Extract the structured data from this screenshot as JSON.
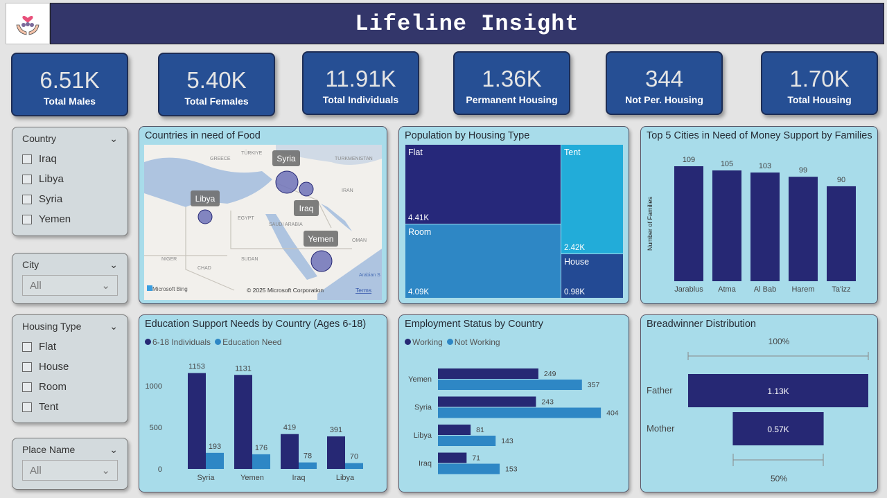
{
  "header": {
    "title": "Lifeline Insight",
    "logo_icon": "hands-holding-family-heart-icon"
  },
  "kpis": [
    {
      "value": "6.51K",
      "label": "Total Males"
    },
    {
      "value": "5.40K",
      "label": "Total Females"
    },
    {
      "value": "11.91K",
      "label": "Total Individuals"
    },
    {
      "value": "1.36K",
      "label": "Permanent Housing"
    },
    {
      "value": "344",
      "label": "Not Per. Housing"
    },
    {
      "value": "1.70K",
      "label": "Total Housing"
    }
  ],
  "slicers": {
    "country": {
      "title": "Country",
      "options": [
        "Iraq",
        "Libya",
        "Syria",
        "Yemen"
      ]
    },
    "city": {
      "title": "City",
      "value": "All"
    },
    "housing": {
      "title": "Housing Type",
      "options": [
        "Flat",
        "House",
        "Room",
        "Tent"
      ]
    },
    "place": {
      "title": "Place Name",
      "value": "All"
    }
  },
  "map": {
    "title": "Countries in need of Food",
    "labels": [
      "Syria",
      "Libya",
      "Iraq",
      "Yemen"
    ],
    "region_labels": [
      "GREECE",
      "TÜRKIYE",
      "TURKMENISTAN",
      "IRAN",
      "EGYPT",
      "SAUDI ARABIA",
      "OMAN",
      "NIGER",
      "CHAD",
      "SUDAN",
      "Arabian S"
    ],
    "attribution": "© 2025 Microsoft Corporation",
    "terms": "Terms",
    "brand": "Microsoft Bing"
  },
  "colors": {
    "dark": "#262874",
    "mid": "#2e87c5",
    "light": "#22acd9",
    "navy": "#234a94",
    "panel": "#a8dcea",
    "kpi": "#264f94"
  },
  "chart_data": [
    {
      "type": "treemap",
      "title": "Population by Housing Type",
      "categories": [
        "Flat",
        "Room",
        "Tent",
        "House"
      ],
      "values": [
        4410,
        4090,
        2420,
        980
      ],
      "labels": [
        "4.41K",
        "4.09K",
        "2.42K",
        "0.98K"
      ]
    },
    {
      "type": "bar",
      "title": "Top 5 Cities in Need of Money Support by Families",
      "ylabel": "Number of Families",
      "categories": [
        "Jarablus",
        "Atma",
        "Al Bab",
        "Harem",
        "Ta'izz"
      ],
      "values": [
        109,
        105,
        103,
        99,
        90
      ]
    },
    {
      "type": "bar",
      "title": "Education Support Needs by Country (Ages 6-18)",
      "categories": [
        "Syria",
        "Yemen",
        "Iraq",
        "Libya"
      ],
      "series": [
        {
          "name": "6-18 Individuals",
          "values": [
            1153,
            1131,
            419,
            391
          ]
        },
        {
          "name": "Education Need",
          "values": [
            193,
            176,
            78,
            70
          ]
        }
      ],
      "yticks": [
        0,
        500,
        1000
      ]
    },
    {
      "type": "bar",
      "orientation": "horizontal",
      "title": "Employment Status by Country",
      "categories": [
        "Yemen",
        "Syria",
        "Libya",
        "Iraq"
      ],
      "series": [
        {
          "name": "Working",
          "values": [
            249,
            243,
            81,
            71
          ]
        },
        {
          "name": "Not Working",
          "values": [
            357,
            404,
            143,
            153
          ]
        }
      ]
    },
    {
      "type": "funnel",
      "title": "Breadwinner Distribution",
      "categories": [
        "Father",
        "Mother"
      ],
      "values": [
        1130,
        570
      ],
      "labels": [
        "1.13K",
        "0.57K"
      ],
      "top_pct": "100%",
      "bottom_pct": "50%"
    }
  ]
}
